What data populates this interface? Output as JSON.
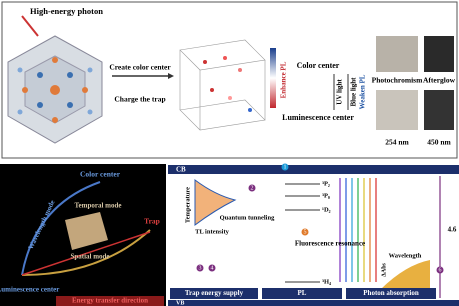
{
  "top": {
    "photon": "High-energy photon",
    "create": "Create color center",
    "charge": "Charge the trap",
    "color_center": "Color center",
    "lum_center": "Luminescence center",
    "weaken": "Weaken PL",
    "enhance": "Enhance PL",
    "uv": "UV light",
    "blue": "Blue light",
    "photochromism": "Photochromism",
    "afterglow": "Afterglow",
    "nm254": "254 nm",
    "nm450": "450 nm"
  },
  "left": {
    "color_center": "Color center",
    "wavelength": "Wavelength mode",
    "temporal": "Temporal mode",
    "spatial": "Spatial mode",
    "trap": "Trap",
    "lum_center": "Luminescence center",
    "direction": "Energy transfer direction"
  },
  "right": {
    "cb": "CB",
    "vb": "VB",
    "temperature": "Temperature",
    "tl": "TL intensity",
    "tunneling": "Quantum tunneling",
    "levels": [
      "³P₂",
      "³P₀",
      "¹D₂",
      "³H₄"
    ],
    "fret": "Fluorescence resonance",
    "wavelength": "Wavelength",
    "dabs": "ΔAbs",
    "gap": "4.6",
    "supply": "Trap energy supply",
    "pl": "PL",
    "absorption": "Photon absorption",
    "markers": [
      "1",
      "2",
      "3",
      "4",
      "5",
      "6"
    ]
  }
}
